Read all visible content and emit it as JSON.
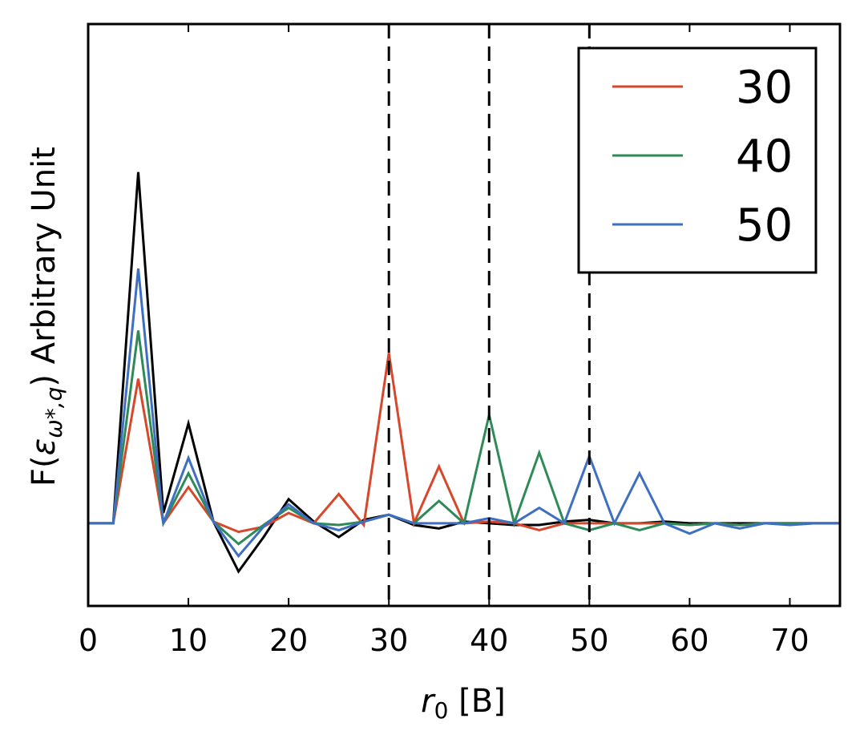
{
  "chart_data": {
    "type": "line",
    "title": "",
    "xlabel_math": "r",
    "xlabel_sub": "0",
    "xlabel_unit": " [B]",
    "ylabel_prefix": "F(",
    "ylabel_eps": "ε",
    "ylabel_sub": "ω*,q",
    "ylabel_suffix": ") Arbitrary Unit",
    "xlim": [
      0,
      75
    ],
    "ylim": [
      -2.4,
      14.5
    ],
    "x_ticks": [
      0,
      10,
      20,
      30,
      40,
      50,
      60,
      70
    ],
    "x_tick_labels": [
      "0",
      "10",
      "20",
      "30",
      "40",
      "50",
      "60",
      "70"
    ],
    "vlines": [
      30,
      40,
      50
    ],
    "grid": false,
    "legend_position": "top-right",
    "x": [
      0,
      2.5,
      5,
      7.5,
      10,
      12.5,
      15,
      17.5,
      20,
      22.5,
      25,
      27.5,
      30,
      32.5,
      35,
      37.5,
      40,
      42.5,
      45,
      47.5,
      50,
      52.5,
      55,
      57.5,
      60,
      62.5,
      65,
      67.5,
      70,
      72.5,
      75
    ],
    "series": [
      {
        "name": "",
        "color": "#000000",
        "values": [
          0,
          0,
          10.2,
          0.3,
          2.9,
          0.05,
          -1.4,
          -0.4,
          0.7,
          0.05,
          -0.4,
          0.1,
          0.25,
          -0.05,
          -0.15,
          0.05,
          0,
          -0.05,
          -0.05,
          0.05,
          0.1,
          0,
          0,
          0.05,
          0,
          0,
          0,
          0,
          0,
          0,
          0
        ]
      },
      {
        "name": "30",
        "color": "#d7472b",
        "values": [
          0,
          0,
          4.2,
          0,
          1.05,
          0.05,
          -0.25,
          -0.1,
          0.3,
          0,
          0.85,
          -0.05,
          4.95,
          0,
          1.65,
          0,
          0.05,
          0,
          -0.2,
          0,
          0,
          0,
          0,
          0,
          -0.05,
          0,
          -0.05,
          0,
          0,
          0,
          0
        ]
      },
      {
        "name": "40",
        "color": "#2e8b57",
        "values": [
          0,
          0,
          5.6,
          0,
          1.45,
          0.05,
          -0.6,
          -0.05,
          0.45,
          0,
          -0.05,
          0.05,
          0.25,
          0,
          0.65,
          0,
          3.15,
          0,
          2.05,
          0,
          -0.2,
          0,
          -0.2,
          0,
          -0.05,
          0,
          -0.05,
          0,
          0,
          0,
          0
        ]
      },
      {
        "name": "50",
        "color": "#3e6fc0",
        "values": [
          0,
          0,
          7.4,
          0,
          1.9,
          0.05,
          -0.95,
          -0.1,
          0.55,
          0,
          -0.2,
          0.05,
          0.25,
          0,
          0,
          0,
          0.15,
          0,
          0.45,
          0,
          1.95,
          0,
          1.45,
          0,
          -0.3,
          0,
          -0.15,
          0,
          -0.05,
          0,
          0
        ]
      }
    ]
  }
}
